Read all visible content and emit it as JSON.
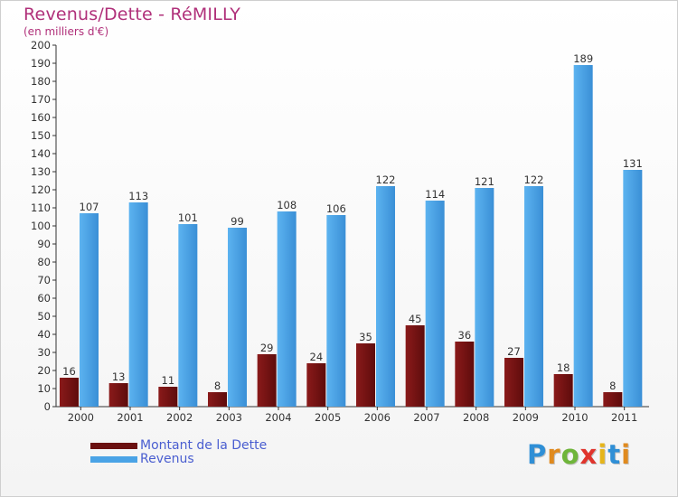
{
  "title": "Revenus/Dette - RéMILLY",
  "subtitle": "(en milliers d'€)",
  "logo": {
    "text": "Proxiti",
    "colors": [
      "#2f8fd6",
      "#e08a1e",
      "#6fb53a",
      "#e0342c",
      "#e6b51a",
      "#2f8fd6",
      "#e08a1e"
    ]
  },
  "chart_data": {
    "type": "bar",
    "categories": [
      "2000",
      "2001",
      "2002",
      "2003",
      "2004",
      "2005",
      "2006",
      "2007",
      "2008",
      "2009",
      "2010",
      "2011"
    ],
    "series": [
      {
        "name": "Montant de la Dette",
        "color": "#7a1212",
        "values": [
          16,
          13,
          11,
          8,
          29,
          24,
          35,
          45,
          36,
          27,
          18,
          8
        ]
      },
      {
        "name": "Revenus",
        "color": "#4aa3e6",
        "values": [
          107,
          113,
          101,
          99,
          108,
          106,
          122,
          114,
          121,
          122,
          189,
          131
        ]
      }
    ],
    "ylim": [
      0,
      200
    ],
    "yticks": [
      0,
      10,
      20,
      30,
      40,
      50,
      60,
      70,
      80,
      90,
      100,
      110,
      120,
      130,
      140,
      150,
      160,
      170,
      180,
      190,
      200
    ],
    "grid": false,
    "legend_position": "bottom-left"
  }
}
